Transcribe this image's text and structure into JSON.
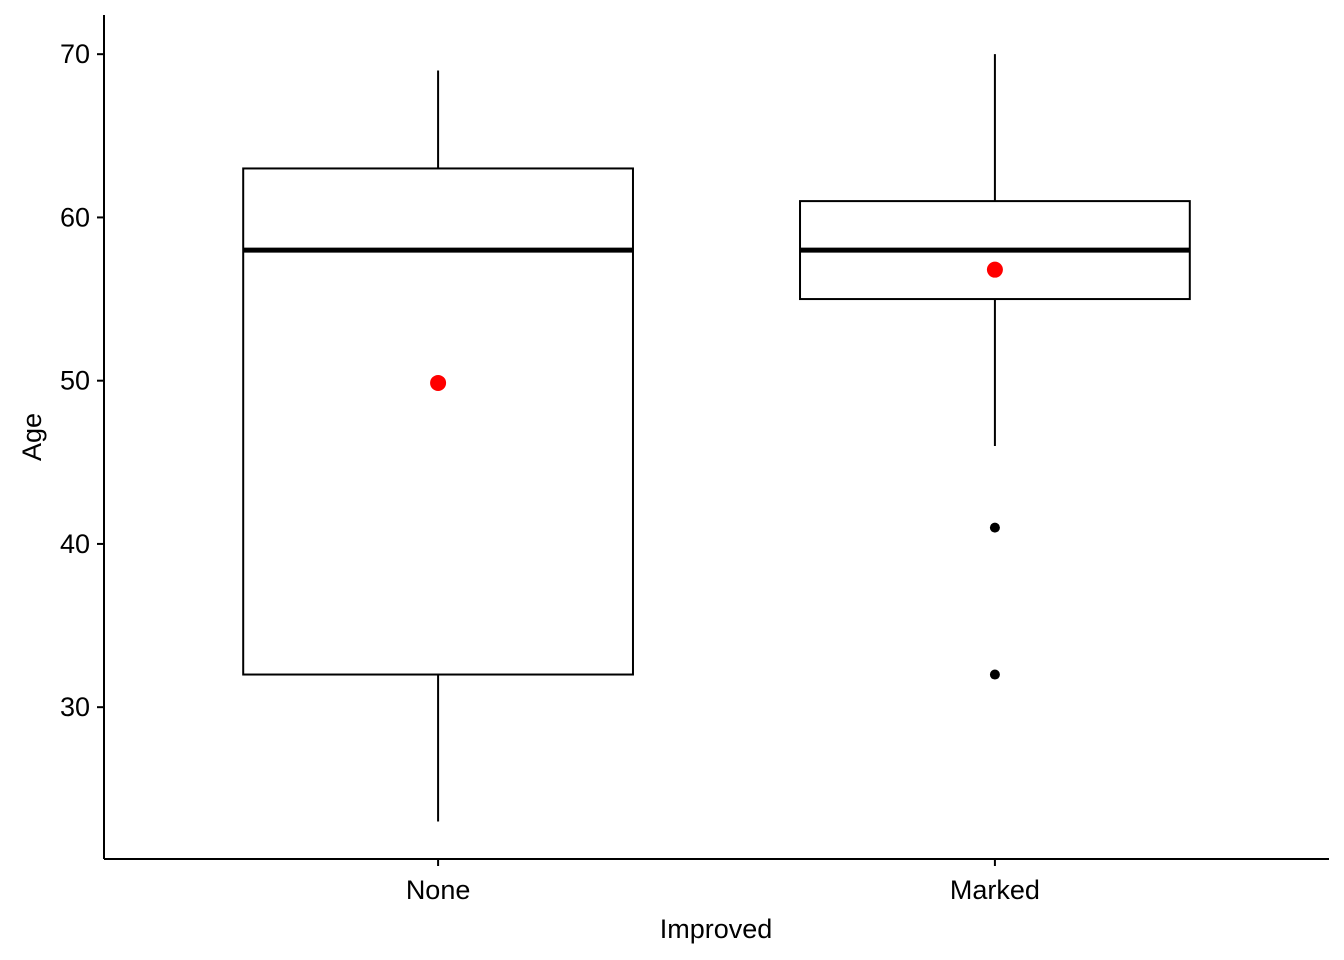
{
  "chart_data": {
    "type": "boxplot",
    "title": "",
    "xlabel": "Improved",
    "ylabel": "Age",
    "ylim": [
      20.7,
      72.4
    ],
    "yticks": [
      30,
      40,
      50,
      60,
      70
    ],
    "categories": [
      "None",
      "Marked"
    ],
    "boxes": [
      {
        "category": "None",
        "whisker_low": 23,
        "q1": 32,
        "median": 58,
        "q3": 63,
        "whisker_high": 69,
        "mean": 49.86,
        "outliers": []
      },
      {
        "category": "Marked",
        "whisker_low": 46,
        "q1": 55,
        "median": 58,
        "q3": 61,
        "whisker_high": 70,
        "mean": 56.8,
        "outliers": [
          41,
          32
        ]
      }
    ],
    "grid": false,
    "mean_color": "#ff0000",
    "outlier_color": "#000000"
  }
}
